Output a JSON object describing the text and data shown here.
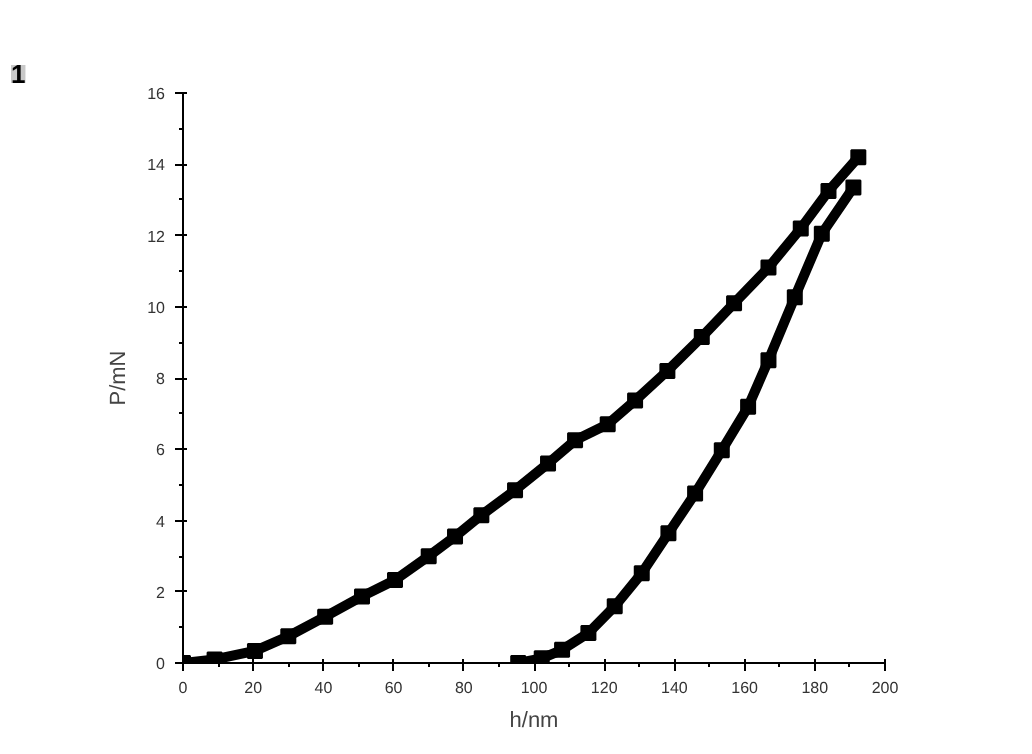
{
  "chart_data": {
    "type": "line",
    "xlabel": "h/nm",
    "ylabel": "P/mN",
    "annotations": [
      "1"
    ],
    "xlim": [
      0,
      200
    ],
    "ylim": [
      0,
      16
    ],
    "xticks": [
      0,
      20,
      40,
      60,
      80,
      100,
      120,
      140,
      160,
      180,
      200
    ],
    "yticks": [
      0,
      2,
      4,
      6,
      8,
      10,
      12,
      14,
      16
    ],
    "grid": false,
    "marker": "square",
    "line_style": "solid",
    "series": [
      {
        "color": "#000000",
        "x": [
          0,
          9,
          20.5,
          30,
          40.5,
          51,
          60.4,
          70,
          77.5,
          85,
          94.6,
          104,
          111.7,
          121,
          128.8,
          138,
          147.8,
          157,
          166.8,
          176,
          183.9,
          192.4
        ],
        "values": [
          0,
          0.1,
          0.34,
          0.75,
          1.3,
          1.87,
          2.33,
          3.0,
          3.55,
          4.15,
          4.85,
          5.6,
          6.25,
          6.7,
          7.37,
          8.2,
          9.15,
          10.1,
          11.1,
          12.2,
          13.25,
          14.2
        ]
      },
      {
        "color": "#000000",
        "x": [
          191,
          182,
          174.3,
          166.8,
          161,
          153.5,
          145.9,
          138.3,
          130.7,
          123,
          115.5,
          108,
          102.2,
          95.5
        ],
        "values": [
          13.35,
          12.05,
          10.27,
          8.5,
          7.19,
          5.97,
          4.76,
          3.64,
          2.52,
          1.59,
          0.84,
          0.37,
          0.13,
          0
        ]
      }
    ]
  }
}
